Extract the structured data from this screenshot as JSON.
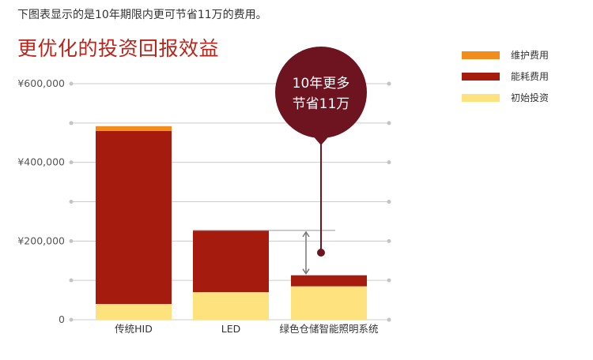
{
  "intro": "下图表显示的是10年期限内更可节省11万的费用。",
  "chart_data": {
    "type": "bar",
    "stacked": true,
    "title": "更优化的投资回报效益",
    "categories": [
      "传统HID",
      "LED",
      "绿色仓储智能照明系统"
    ],
    "series": [
      {
        "name": "初始投资",
        "color": "#fde27e",
        "values": [
          40000,
          70000,
          85000
        ]
      },
      {
        "name": "能耗费用",
        "color": "#a51c0e",
        "values": [
          440000,
          157000,
          28000
        ]
      },
      {
        "name": "维护费用",
        "color": "#f28c1a",
        "values": [
          12000,
          0,
          0
        ]
      }
    ],
    "legend_order": [
      "维护费用",
      "能耗费用",
      "初始投资"
    ],
    "legend_position": "top-right",
    "ylim": [
      0,
      600000
    ],
    "yticks": [
      {
        "value": 0,
        "label": "0"
      },
      {
        "value": 200000,
        "label": "¥200,000"
      },
      {
        "value": 400000,
        "label": "¥400,000"
      },
      {
        "value": 600000,
        "label": "¥600,000"
      }
    ],
    "gridlines": [
      0,
      100000,
      200000,
      300000,
      400000,
      500000,
      600000
    ],
    "callout": {
      "line1": "10年更多",
      "line2": "节省11万"
    },
    "callout_color": "#6e1421",
    "grid_color": "#cccccc"
  }
}
